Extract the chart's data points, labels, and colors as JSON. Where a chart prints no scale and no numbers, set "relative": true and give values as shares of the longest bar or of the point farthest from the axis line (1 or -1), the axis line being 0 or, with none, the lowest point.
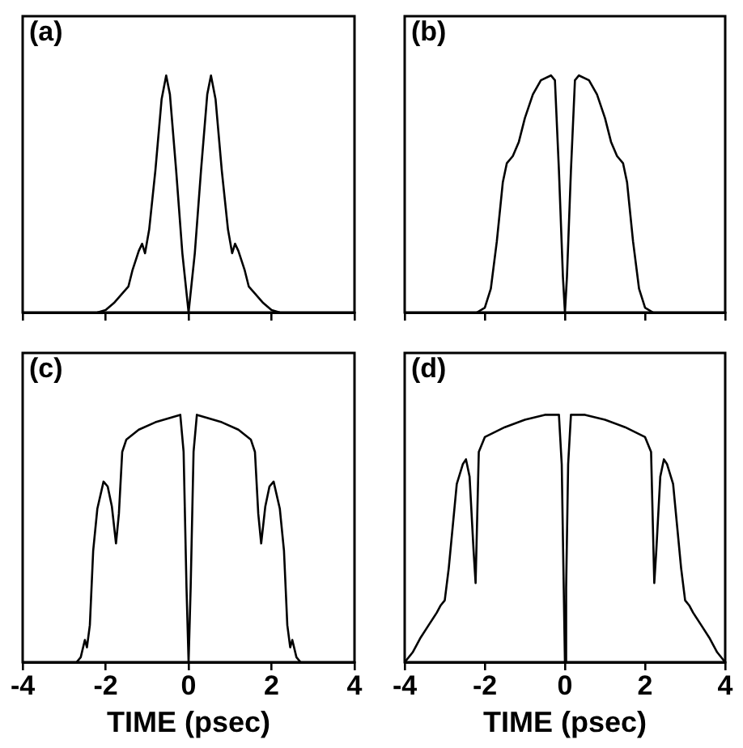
{
  "chart_data": [
    {
      "type": "line",
      "relative": true,
      "annotations": [
        "(a)"
      ],
      "xlim": [
        -4,
        4
      ],
      "xticks": [
        {
          "value": -4,
          "label": null
        },
        {
          "value": -2,
          "label": null
        },
        {
          "value": 0,
          "label": null
        },
        {
          "value": 2,
          "label": null
        },
        {
          "value": 4,
          "label": null
        }
      ],
      "tick_labels": false,
      "marker": "none",
      "line_style": "solid",
      "series": [
        {
          "color": "#000000",
          "x": [
            -2.2,
            -2.0,
            -1.8,
            -1.6,
            -1.45,
            -1.35,
            -1.2,
            -1.12,
            -1.05,
            -0.95,
            -0.8,
            -0.65,
            -0.54,
            -0.45,
            -0.3,
            -0.15,
            0,
            0.15,
            0.3,
            0.45,
            0.54,
            0.65,
            0.8,
            0.95,
            1.05,
            1.12,
            1.2,
            1.35,
            1.45,
            1.6,
            1.8,
            2.0,
            2.2
          ],
          "values": [
            0,
            0.01,
            0.04,
            0.08,
            0.11,
            0.18,
            0.26,
            0.29,
            0.25,
            0.35,
            0.6,
            0.9,
            1,
            0.92,
            0.6,
            0.25,
            0,
            0.25,
            0.6,
            0.92,
            1,
            0.9,
            0.6,
            0.35,
            0.25,
            0.29,
            0.26,
            0.18,
            0.11,
            0.08,
            0.04,
            0.01,
            0
          ]
        }
      ]
    },
    {
      "type": "line",
      "relative": true,
      "annotations": [
        "(b)"
      ],
      "xlim": [
        -4,
        4
      ],
      "xticks": [
        {
          "value": -4,
          "label": null
        },
        {
          "value": -2,
          "label": null
        },
        {
          "value": 0,
          "label": null
        },
        {
          "value": 2,
          "label": null
        },
        {
          "value": 4,
          "label": null
        }
      ],
      "tick_labels": false,
      "marker": "none",
      "line_style": "solid",
      "series": [
        {
          "color": "#000000",
          "x": [
            -2.2,
            -2.0,
            -1.85,
            -1.7,
            -1.55,
            -1.45,
            -1.3,
            -1.15,
            -1.0,
            -0.8,
            -0.6,
            -0.35,
            -0.25,
            -0.15,
            -0.05,
            0,
            0.05,
            0.15,
            0.25,
            0.35,
            0.6,
            0.8,
            1.0,
            1.15,
            1.3,
            1.45,
            1.55,
            1.7,
            1.85,
            2.0,
            2.2
          ],
          "values": [
            0,
            0.02,
            0.1,
            0.3,
            0.55,
            0.63,
            0.66,
            0.72,
            0.82,
            0.92,
            0.98,
            1,
            0.98,
            0.6,
            0.15,
            0,
            0.15,
            0.6,
            0.98,
            1,
            0.98,
            0.92,
            0.82,
            0.72,
            0.66,
            0.63,
            0.55,
            0.3,
            0.1,
            0.02,
            0
          ]
        }
      ]
    },
    {
      "type": "line",
      "relative": true,
      "annotations": [
        "(c)"
      ],
      "xlabel": "TIME (psec)",
      "xlim": [
        -4,
        4
      ],
      "xticks": [
        -4,
        -2,
        0,
        2,
        4
      ],
      "tick_labels": "x",
      "marker": "none",
      "line_style": "solid",
      "series": [
        {
          "color": "#000000",
          "x": [
            -2.7,
            -2.6,
            -2.5,
            -2.45,
            -2.38,
            -2.3,
            -2.2,
            -2.05,
            -1.95,
            -1.85,
            -1.75,
            -1.68,
            -1.6,
            -1.5,
            -1.2,
            -0.8,
            -0.4,
            -0.2,
            -0.12,
            -0.05,
            0,
            0.05,
            0.12,
            0.2,
            0.4,
            0.8,
            1.2,
            1.5,
            1.6,
            1.68,
            1.75,
            1.85,
            1.95,
            2.05,
            2.2,
            2.3,
            2.38,
            2.45,
            2.5,
            2.6,
            2.7
          ],
          "values": [
            0,
            0.02,
            0.09,
            0.06,
            0.15,
            0.45,
            0.62,
            0.73,
            0.71,
            0.63,
            0.48,
            0.6,
            0.85,
            0.9,
            0.94,
            0.97,
            0.99,
            1,
            0.85,
            0.3,
            0,
            0.3,
            0.85,
            1,
            0.99,
            0.97,
            0.94,
            0.9,
            0.85,
            0.6,
            0.48,
            0.63,
            0.71,
            0.73,
            0.62,
            0.45,
            0.15,
            0.06,
            0.09,
            0.02,
            0
          ]
        }
      ]
    },
    {
      "type": "line",
      "relative": true,
      "annotations": [
        "(d)"
      ],
      "xlabel": "TIME (psec)",
      "xlim": [
        -4,
        4
      ],
      "xticks": [
        -4,
        -2,
        0,
        2,
        4
      ],
      "tick_labels": "x",
      "marker": "none",
      "line_style": "solid",
      "series": [
        {
          "color": "#000000",
          "x": [
            -4,
            -3.8,
            -3.6,
            -3.4,
            -3.2,
            -3.1,
            -3.0,
            -2.9,
            -2.8,
            -2.7,
            -2.55,
            -2.47,
            -2.38,
            -2.28,
            -2.23,
            -2.15,
            -2.0,
            -1.5,
            -1.0,
            -0.5,
            -0.15,
            -0.08,
            -0.03,
            0,
            0.03,
            0.08,
            0.15,
            0.5,
            1.0,
            1.5,
            2.0,
            2.15,
            2.23,
            2.28,
            2.38,
            2.47,
            2.55,
            2.7,
            2.8,
            2.9,
            3.0,
            3.1,
            3.2,
            3.4,
            3.6,
            3.8,
            4
          ],
          "values": [
            0,
            0.04,
            0.1,
            0.15,
            0.2,
            0.23,
            0.25,
            0.38,
            0.55,
            0.72,
            0.8,
            0.82,
            0.75,
            0.45,
            0.32,
            0.85,
            0.91,
            0.95,
            0.98,
            1,
            1,
            0.8,
            0.3,
            0,
            0.3,
            0.8,
            1,
            1,
            0.98,
            0.95,
            0.91,
            0.85,
            0.32,
            0.45,
            0.75,
            0.82,
            0.8,
            0.72,
            0.55,
            0.38,
            0.25,
            0.23,
            0.2,
            0.15,
            0.1,
            0.04,
            0
          ]
        }
      ]
    }
  ]
}
